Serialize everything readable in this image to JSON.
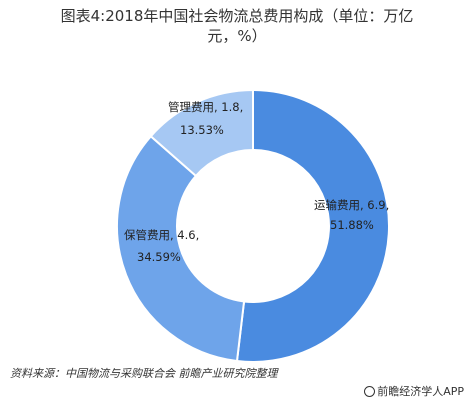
{
  "chart_data": {
    "type": "pie",
    "title": "图表4:2018年中国社会物流总费用构成（单位：万亿元，%）",
    "slices": [
      {
        "name": "运输费用",
        "value": 6.9,
        "percent": "51.88%",
        "color": "#4a8be0"
      },
      {
        "name": "保管费用",
        "value": 4.6,
        "percent": "34.59%",
        "color": "#6ea4ea"
      },
      {
        "name": "管理费用",
        "value": 1.8,
        "percent": "13.53%",
        "color": "#a6c8f3"
      }
    ],
    "donut": true
  },
  "title_line1": "图表4:2018年中国社会物流总费用构成（单位：万亿",
  "title_line2": "元，%）",
  "labels": {
    "transport": {
      "line1": "运输费用, 6.9,",
      "line2": "51.88%"
    },
    "storage": {
      "line1": "保管费用, 4.6,",
      "line2": "34.59%"
    },
    "management": {
      "line1": "管理费用, 1.8,",
      "line2": "13.53%"
    }
  },
  "source": "资料来源：中国物流与采购联合会 前瞻产业研究院整理",
  "brand": "前瞻经济学人APP"
}
